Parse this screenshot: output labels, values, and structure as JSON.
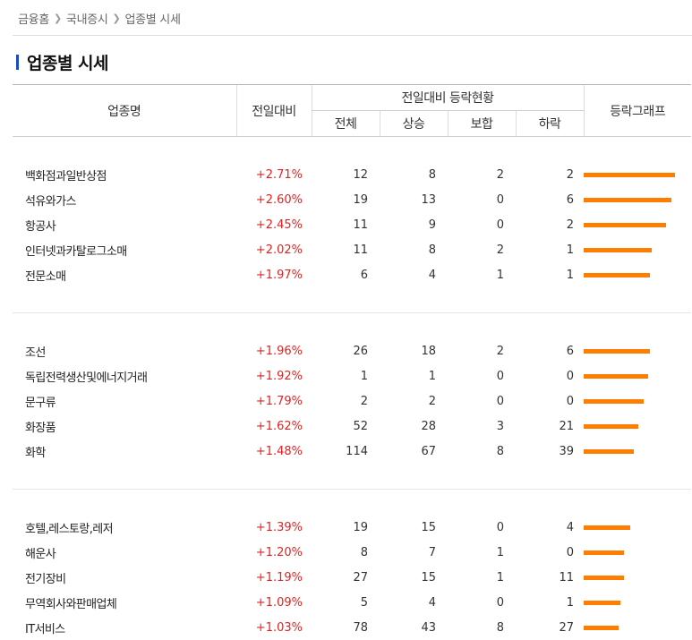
{
  "breadcrumb": {
    "items": [
      "금융홈",
      "국내증시",
      "업종별 시세"
    ]
  },
  "page": {
    "title": "업종별 시세"
  },
  "table": {
    "headers": {
      "name": "업종명",
      "change": "전일대비",
      "group": "전일대비 등락현황",
      "total": "전체",
      "up": "상승",
      "flat": "보합",
      "down": "하락",
      "graph": "등락그래프"
    },
    "groups": [
      [
        {
          "name": "백화점과일반상점",
          "rate": "+2.71%",
          "total": "12",
          "up": "8",
          "flat": "2",
          "down": "2",
          "rate_value": 2.71
        },
        {
          "name": "석유와가스",
          "rate": "+2.60%",
          "total": "19",
          "up": "13",
          "flat": "0",
          "down": "6",
          "rate_value": 2.6
        },
        {
          "name": "항공사",
          "rate": "+2.45%",
          "total": "11",
          "up": "9",
          "flat": "0",
          "down": "2",
          "rate_value": 2.45
        },
        {
          "name": "인터넷과카탈로그소매",
          "rate": "+2.02%",
          "total": "11",
          "up": "8",
          "flat": "2",
          "down": "1",
          "rate_value": 2.02
        },
        {
          "name": "전문소매",
          "rate": "+1.97%",
          "total": "6",
          "up": "4",
          "flat": "1",
          "down": "1",
          "rate_value": 1.97
        }
      ],
      [
        {
          "name": "조선",
          "rate": "+1.96%",
          "total": "26",
          "up": "18",
          "flat": "2",
          "down": "6",
          "rate_value": 1.96
        },
        {
          "name": "독립전력생산및에너지거래",
          "rate": "+1.92%",
          "total": "1",
          "up": "1",
          "flat": "0",
          "down": "0",
          "rate_value": 1.92
        },
        {
          "name": "문구류",
          "rate": "+1.79%",
          "total": "2",
          "up": "2",
          "flat": "0",
          "down": "0",
          "rate_value": 1.79
        },
        {
          "name": "화장품",
          "rate": "+1.62%",
          "total": "52",
          "up": "28",
          "flat": "3",
          "down": "21",
          "rate_value": 1.62
        },
        {
          "name": "화학",
          "rate": "+1.48%",
          "total": "114",
          "up": "67",
          "flat": "8",
          "down": "39",
          "rate_value": 1.48
        }
      ],
      [
        {
          "name": "호텔,레스토랑,레저",
          "rate": "+1.39%",
          "total": "19",
          "up": "15",
          "flat": "0",
          "down": "4",
          "rate_value": 1.39
        },
        {
          "name": "해운사",
          "rate": "+1.20%",
          "total": "8",
          "up": "7",
          "flat": "1",
          "down": "0",
          "rate_value": 1.2
        },
        {
          "name": "전기장비",
          "rate": "+1.19%",
          "total": "27",
          "up": "15",
          "flat": "1",
          "down": "11",
          "rate_value": 1.19
        },
        {
          "name": "무역회사와판매업체",
          "rate": "+1.09%",
          "total": "5",
          "up": "4",
          "flat": "0",
          "down": "1",
          "rate_value": 1.09
        },
        {
          "name": "IT서비스",
          "rate": "+1.03%",
          "total": "78",
          "up": "43",
          "flat": "8",
          "down": "27",
          "rate_value": 1.03
        }
      ]
    ]
  },
  "colors": {
    "up_text": "#e81f1f",
    "graph_bar": "#ff7d00",
    "title_accent": "#1b4bbf"
  }
}
